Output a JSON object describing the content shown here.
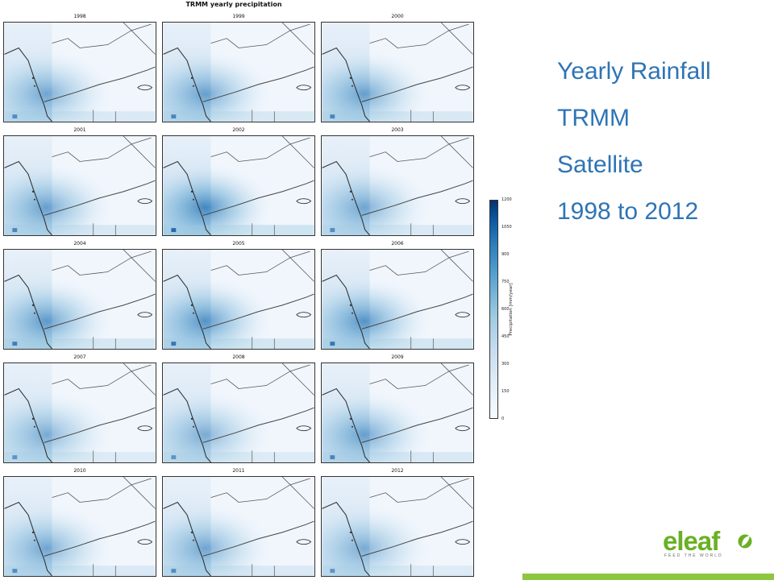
{
  "figure": {
    "title": "TRMM yearly precipitation",
    "panels": [
      {
        "year": "1998",
        "intensity": 0.55
      },
      {
        "year": "1999",
        "intensity": 0.6
      },
      {
        "year": "2000",
        "intensity": 0.6
      },
      {
        "year": "2001",
        "intensity": 0.6
      },
      {
        "year": "2002",
        "intensity": 0.8
      },
      {
        "year": "2003",
        "intensity": 0.55
      },
      {
        "year": "2004",
        "intensity": 0.65
      },
      {
        "year": "2005",
        "intensity": 0.7
      },
      {
        "year": "2006",
        "intensity": 0.7
      },
      {
        "year": "2007",
        "intensity": 0.5
      },
      {
        "year": "2008",
        "intensity": 0.5
      },
      {
        "year": "2009",
        "intensity": 0.6
      },
      {
        "year": "2010",
        "intensity": 0.55
      },
      {
        "year": "2011",
        "intensity": 0.55
      },
      {
        "year": "2012",
        "intensity": 0.5
      }
    ],
    "colorbar": {
      "label": "Precipitation [mm/year]",
      "ticks": [
        "0",
        "150",
        "300",
        "450",
        "600",
        "750",
        "900",
        "1050",
        "1200"
      ],
      "min": 0,
      "max": 1200
    }
  },
  "side_text": [
    "Yearly Rainfall",
    "TRMM",
    "Satellite",
    "1998 to 2012"
  ],
  "logo": {
    "word": "eleaf",
    "tagline": "FEED THE WORLD"
  },
  "colors": {
    "accent_text": "#2e74b5",
    "logo_green": "#6ab023",
    "footer_bar": "#8dc63f",
    "map_dark_blue": "#08519c"
  }
}
